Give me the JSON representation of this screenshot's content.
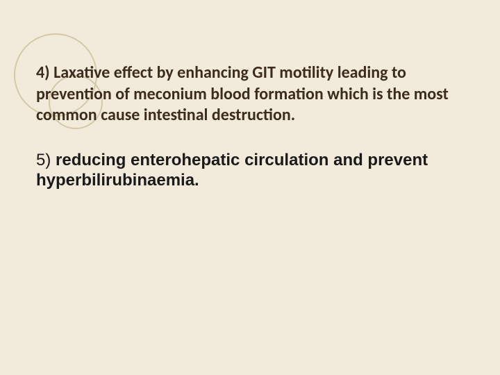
{
  "slide": {
    "background_color": "#f2eadb",
    "decoration": {
      "stroke_color": "#d5c8a8",
      "large_circle_diameter": 120,
      "small_circle_diameter": 78
    },
    "paragraphs": [
      {
        "text": "4) Laxative effect by enhancing GIT motility leading to prevention of meconium blood formation which is the most common cause intestinal destruction.",
        "font_family": "Gill Sans",
        "font_weight": "bold",
        "font_size": 24,
        "color": "#3c2c1b"
      },
      {
        "lead": "5) ",
        "bold_text": "reducing enterohepatic circulation and prevent hyperbilirubinaemia.",
        "font_family": "Arial",
        "font_size": 24,
        "color": "#1a1a1a"
      }
    ]
  }
}
